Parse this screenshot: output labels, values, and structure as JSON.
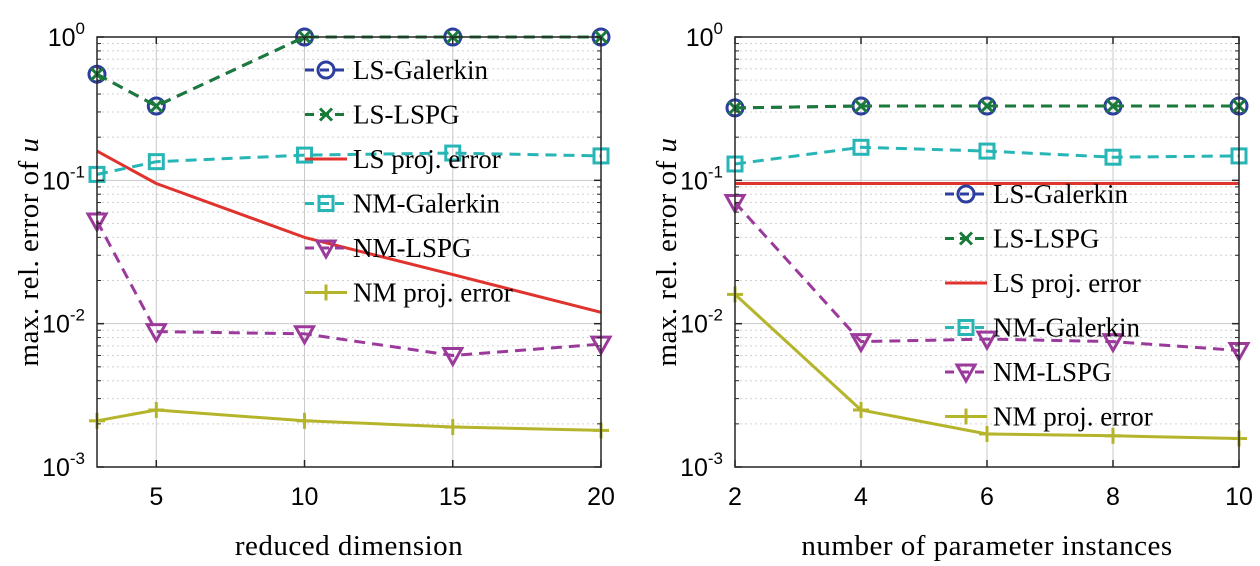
{
  "chart_data": [
    {
      "type": "line",
      "yscale": "log",
      "xlabel": "reduced dimension",
      "ylabel": "max. rel. error of",
      "ylabel_var": "u",
      "xlim": [
        3,
        20
      ],
      "ylim": [
        0.001,
        1
      ],
      "xticks": [
        5,
        10,
        15,
        20
      ],
      "grid": true,
      "legend_placement": "right",
      "series": [
        {
          "name": "LS-Galerkin",
          "color": "#2c3e9e",
          "marker": "circle",
          "linestyle": "dashed",
          "x": [
            3,
            5,
            10,
            15,
            20
          ],
          "y": [
            0.55,
            0.33,
            1.0,
            1.0,
            1.0
          ]
        },
        {
          "name": "LS-LSPG",
          "color": "#1a7a3a",
          "marker": "x",
          "linestyle": "dashed",
          "x": [
            3,
            5,
            10,
            15,
            20
          ],
          "y": [
            0.55,
            0.33,
            1.0,
            1.0,
            1.0
          ]
        },
        {
          "name": "LS proj. error",
          "color": "#e0332e",
          "marker": "none",
          "linestyle": "solid",
          "x": [
            3,
            5,
            10,
            15,
            20
          ],
          "y": [
            0.16,
            0.095,
            0.04,
            0.022,
            0.012
          ]
        },
        {
          "name": "NM-Galerkin",
          "color": "#27b5b5",
          "marker": "square",
          "linestyle": "dashed",
          "x": [
            3,
            5,
            10,
            15,
            20
          ],
          "y": [
            0.11,
            0.135,
            0.15,
            0.155,
            0.148
          ]
        },
        {
          "name": "NM-LSPG",
          "color": "#9b3a9b",
          "marker": "triangle-down",
          "linestyle": "dashed",
          "x": [
            3,
            5,
            10,
            15,
            20
          ],
          "y": [
            0.052,
            0.0088,
            0.0085,
            0.006,
            0.0072
          ]
        },
        {
          "name": "NM proj. error",
          "color": "#b5b52c",
          "marker": "plus",
          "linestyle": "solid",
          "x": [
            3,
            5,
            10,
            15,
            20
          ],
          "y": [
            0.0021,
            0.0025,
            0.0021,
            0.0019,
            0.0018
          ]
        }
      ]
    },
    {
      "type": "line",
      "yscale": "log",
      "xlabel": "number of parameter instances",
      "ylabel": "max. rel. error of",
      "ylabel_var": "u",
      "xlim": [
        2,
        10
      ],
      "ylim": [
        0.001,
        1
      ],
      "xticks": [
        2,
        4,
        6,
        8,
        10
      ],
      "grid": true,
      "legend_placement": "right",
      "series": [
        {
          "name": "LS-Galerkin",
          "color": "#2c3e9e",
          "marker": "circle",
          "linestyle": "dashed",
          "x": [
            2,
            4,
            6,
            8,
            10
          ],
          "y": [
            0.32,
            0.33,
            0.33,
            0.33,
            0.33
          ]
        },
        {
          "name": "LS-LSPG",
          "color": "#1a7a3a",
          "marker": "x",
          "linestyle": "dashed",
          "x": [
            2,
            4,
            6,
            8,
            10
          ],
          "y": [
            0.32,
            0.33,
            0.33,
            0.33,
            0.33
          ]
        },
        {
          "name": "LS proj. error",
          "color": "#e0332e",
          "marker": "none",
          "linestyle": "solid",
          "x": [
            2,
            4,
            6,
            8,
            10
          ],
          "y": [
            0.095,
            0.095,
            0.095,
            0.095,
            0.095
          ]
        },
        {
          "name": "NM-Galerkin",
          "color": "#27b5b5",
          "marker": "square",
          "linestyle": "dashed",
          "x": [
            2,
            4,
            6,
            8,
            10
          ],
          "y": [
            0.13,
            0.17,
            0.16,
            0.145,
            0.148
          ]
        },
        {
          "name": "NM-LSPG",
          "color": "#9b3a9b",
          "marker": "triangle-down",
          "linestyle": "dashed",
          "x": [
            2,
            4,
            6,
            8,
            10
          ],
          "y": [
            0.07,
            0.0075,
            0.0078,
            0.0075,
            0.0065
          ]
        },
        {
          "name": "NM proj. error",
          "color": "#b5b52c",
          "marker": "plus",
          "linestyle": "solid",
          "x": [
            2,
            4,
            6,
            8,
            10
          ],
          "y": [
            0.016,
            0.0025,
            0.0017,
            0.00165,
            0.00158
          ]
        }
      ]
    }
  ]
}
